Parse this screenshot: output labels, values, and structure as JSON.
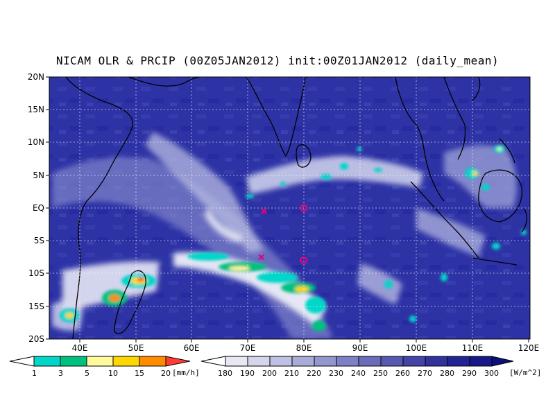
{
  "title": "NICAM OLR & PRCIP (00Z05JAN2012) init:00Z01JAN2012 (daily_mean)",
  "lat_labels": [
    "20N",
    "15N",
    "10N",
    "5N",
    "EQ",
    "5S",
    "10S",
    "15S",
    "20S"
  ],
  "lon_labels": [
    "40E",
    "50E",
    "60E",
    "70E",
    "80E",
    "90E",
    "100E",
    "110E",
    "120E"
  ],
  "precip_colorbar": {
    "unit": "[mm/h]",
    "ticks": [
      "1",
      "3",
      "5",
      "10",
      "15",
      "20"
    ],
    "colors": [
      "#00d7c8",
      "#00c080",
      "#fffa9b",
      "#ffd700",
      "#ff8c00",
      "#ff3c32"
    ]
  },
  "olr_colorbar": {
    "unit": "[W/m^2]",
    "ticks": [
      "180",
      "190",
      "200",
      "210",
      "220",
      "230",
      "240",
      "250",
      "260",
      "270",
      "280",
      "290",
      "300"
    ],
    "colors": [
      "#f2f2fa",
      "#dcdcf0",
      "#c6c8e6",
      "#b0b2dc",
      "#9a9cd2",
      "#8486c8",
      "#6e70be",
      "#5a5cb4",
      "#4648aa",
      "#3436a0",
      "#262896",
      "#1a1c8c",
      "#101280",
      "#080a70"
    ]
  },
  "markers": [
    {
      "type": "x",
      "lon": 73,
      "lat": -0.5,
      "color": "#e6007e"
    },
    {
      "type": "x",
      "lon": 72.5,
      "lat": -7.5,
      "color": "#e6007e"
    },
    {
      "type": "o",
      "lon": 80,
      "lat": 0,
      "color": "#e6007e"
    },
    {
      "type": "o",
      "lon": 80,
      "lat": -8,
      "color": "#e6007e"
    }
  ]
}
